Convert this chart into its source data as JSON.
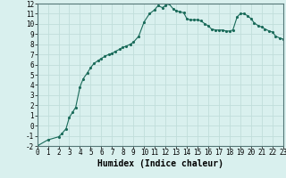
{
  "xlabel": "Humidex (Indice chaleur)",
  "x_values": [
    0,
    1,
    2,
    2.3,
    2.7,
    3.0,
    3.3,
    3.6,
    4.0,
    4.3,
    4.7,
    5.0,
    5.3,
    5.7,
    6.0,
    6.3,
    6.7,
    7.0,
    7.3,
    7.7,
    8.0,
    8.3,
    8.7,
    9.0,
    9.5,
    10.0,
    10.5,
    11.0,
    11.3,
    11.7,
    12.0,
    12.3,
    12.7,
    13.0,
    13.3,
    13.7,
    14.0,
    14.3,
    14.7,
    15.0,
    15.3,
    15.7,
    16.0,
    16.3,
    16.7,
    17.0,
    17.3,
    17.7,
    18.0,
    18.3,
    18.7,
    19.0,
    19.3,
    19.7,
    20.0,
    20.3,
    20.7,
    21.0,
    21.3,
    21.7,
    22.0,
    22.3,
    22.7,
    23.0
  ],
  "y_values": [
    -2.0,
    -1.4,
    -1.1,
    -0.8,
    -0.3,
    0.8,
    1.3,
    1.8,
    3.8,
    4.6,
    5.2,
    5.7,
    6.1,
    6.4,
    6.6,
    6.8,
    7.0,
    7.1,
    7.3,
    7.5,
    7.7,
    7.8,
    8.0,
    8.2,
    8.8,
    10.2,
    11.0,
    11.4,
    11.8,
    11.6,
    11.8,
    12.0,
    11.5,
    11.3,
    11.2,
    11.1,
    10.5,
    10.4,
    10.4,
    10.4,
    10.3,
    10.0,
    9.8,
    9.5,
    9.4,
    9.4,
    9.4,
    9.3,
    9.3,
    9.4,
    10.7,
    11.0,
    11.0,
    10.8,
    10.5,
    10.1,
    9.8,
    9.7,
    9.5,
    9.3,
    9.2,
    8.8,
    8.6,
    8.5
  ],
  "line_color": "#1a6b5a",
  "marker_color": "#1a6b5a",
  "bg_color": "#d9f0ee",
  "grid_major_color": "#c0deda",
  "grid_minor_color": "#c0deda",
  "xlim": [
    0,
    23
  ],
  "ylim": [
    -2,
    12
  ],
  "xticks": [
    0,
    1,
    2,
    3,
    4,
    5,
    6,
    7,
    8,
    9,
    10,
    11,
    12,
    13,
    14,
    15,
    16,
    17,
    18,
    19,
    20,
    21,
    22,
    23
  ],
  "yticks": [
    -2,
    -1,
    0,
    1,
    2,
    3,
    4,
    5,
    6,
    7,
    8,
    9,
    10,
    11,
    12
  ],
  "tick_fontsize": 5.5,
  "label_fontsize": 7.0
}
